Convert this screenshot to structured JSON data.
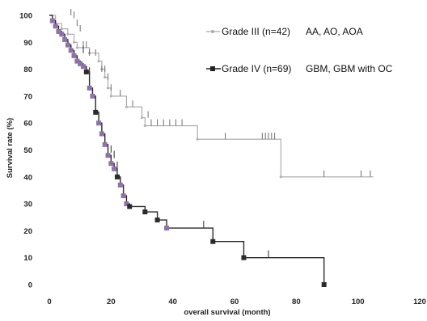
{
  "chart_data": {
    "type": "line",
    "subtype": "kaplan-meier",
    "xlabel": "overall survival (month)",
    "ylabel": "Survival rate (%)",
    "xlim": [
      0,
      120
    ],
    "ylim": [
      0,
      100
    ],
    "xticks": [
      0,
      20,
      40,
      60,
      80,
      100,
      120
    ],
    "yticks": [
      0,
      10,
      20,
      30,
      40,
      50,
      60,
      70,
      80,
      90,
      100
    ],
    "grid": false,
    "legend_position": "top-right",
    "series": [
      {
        "name": "Grade III (n=42)",
        "extra": "AA, AO, AOA",
        "color": "#999999",
        "marker": "circle",
        "steps": [
          [
            0,
            100
          ],
          [
            2,
            97
          ],
          [
            4,
            95
          ],
          [
            6,
            93
          ],
          [
            8,
            90
          ],
          [
            9,
            88
          ],
          [
            13,
            86
          ],
          [
            16,
            83
          ],
          [
            17,
            80
          ],
          [
            18,
            77
          ],
          [
            19,
            73
          ],
          [
            20,
            70
          ],
          [
            24,
            70
          ],
          [
            25,
            66
          ],
          [
            30,
            62
          ],
          [
            31,
            59
          ],
          [
            48,
            54
          ],
          [
            75,
            54
          ],
          [
            75,
            40
          ],
          [
            105,
            40
          ]
        ],
        "events": [
          2,
          4,
          6,
          8,
          9,
          13,
          16,
          17,
          18,
          19,
          20,
          25,
          30,
          31,
          48,
          75
        ],
        "censored": [
          [
            7,
            100
          ],
          [
            8,
            99
          ],
          [
            9,
            96
          ],
          [
            10,
            94
          ],
          [
            11,
            88
          ],
          [
            12,
            88
          ],
          [
            13,
            85
          ],
          [
            15,
            85
          ],
          [
            17,
            79
          ],
          [
            18,
            79
          ],
          [
            19,
            76
          ],
          [
            20,
            72
          ],
          [
            23,
            70
          ],
          [
            27,
            66
          ],
          [
            32,
            62
          ],
          [
            33,
            59
          ],
          [
            35,
            59
          ],
          [
            37,
            59
          ],
          [
            39,
            59
          ],
          [
            41,
            59
          ],
          [
            43,
            59
          ],
          [
            57,
            54
          ],
          [
            69,
            54
          ],
          [
            70,
            54
          ],
          [
            71,
            54
          ],
          [
            72,
            54
          ],
          [
            73,
            54
          ],
          [
            89,
            40
          ],
          [
            101,
            40
          ],
          [
            104,
            40
          ]
        ]
      },
      {
        "name": "Grade IV (n=69)",
        "extra": "GBM, GBM with OC",
        "color": "#333333",
        "event_color": "#8e72a8",
        "marker": "square",
        "steps": [
          [
            0,
            100
          ],
          [
            1,
            98
          ],
          [
            2,
            96
          ],
          [
            3,
            94
          ],
          [
            4,
            93
          ],
          [
            5,
            91
          ],
          [
            6,
            89
          ],
          [
            7,
            87
          ],
          [
            8,
            85
          ],
          [
            9,
            83
          ],
          [
            10,
            82
          ],
          [
            11,
            81
          ],
          [
            12,
            79
          ],
          [
            13,
            73
          ],
          [
            14,
            70
          ],
          [
            15,
            64
          ],
          [
            16,
            60
          ],
          [
            17,
            56
          ],
          [
            18,
            52
          ],
          [
            19,
            48
          ],
          [
            20,
            45
          ],
          [
            21,
            43
          ],
          [
            22,
            40
          ],
          [
            23,
            37
          ],
          [
            24,
            33
          ],
          [
            25,
            30
          ],
          [
            26,
            29
          ],
          [
            31,
            27
          ],
          [
            35,
            24
          ],
          [
            38,
            21
          ],
          [
            53,
            16
          ],
          [
            63,
            10
          ],
          [
            89,
            0
          ]
        ],
        "events": [
          1,
          2,
          3,
          4,
          5,
          6,
          7,
          8,
          9,
          10,
          11,
          12,
          13,
          14,
          15,
          16,
          17,
          18,
          19,
          20,
          21,
          22,
          23,
          24,
          25,
          26,
          31,
          35,
          38,
          53,
          63,
          89
        ],
        "black_marker_events": [
          12,
          15,
          22,
          26,
          31,
          35,
          53,
          63,
          89
        ],
        "censored": [
          [
            11,
            86
          ],
          [
            13,
            78
          ],
          [
            20,
            49
          ],
          [
            21,
            47
          ],
          [
            22,
            43
          ],
          [
            50,
            21
          ],
          [
            71,
            10
          ]
        ]
      }
    ]
  }
}
